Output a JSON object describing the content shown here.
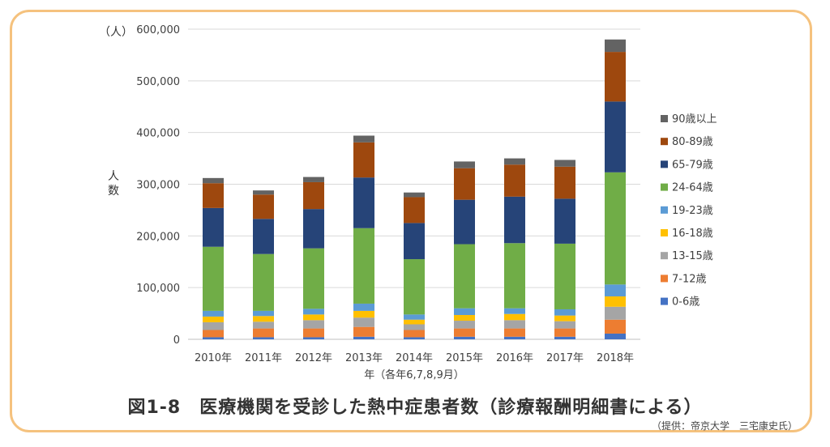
{
  "chart_data": {
    "type": "bar",
    "stacked": true,
    "ylabel_unit": "（人）",
    "ylabel": "人数",
    "xlabel": "年（各年6,7,8,9月）",
    "ylim": [
      0,
      600000
    ],
    "yticks": [
      "0",
      "100,000",
      "200,000",
      "300,000",
      "400,000",
      "500,000",
      "600,000"
    ],
    "categories": [
      "2010年",
      "2011年",
      "2012年",
      "2013年",
      "2014年",
      "2015年",
      "2016年",
      "2017年",
      "2018年"
    ],
    "series": [
      {
        "name": "0-6歳",
        "color": "#4472c4",
        "values": [
          4000,
          4000,
          4000,
          5000,
          4000,
          5000,
          5000,
          5000,
          11000
        ]
      },
      {
        "name": "7-12歳",
        "color": "#ed7d31",
        "values": [
          14000,
          17000,
          17000,
          19000,
          14000,
          16000,
          16000,
          16000,
          27000
        ]
      },
      {
        "name": "13-15歳",
        "color": "#a5a5a5",
        "values": [
          15000,
          13000,
          16000,
          18000,
          11000,
          15000,
          16000,
          14000,
          25000
        ]
      },
      {
        "name": "16-18歳",
        "color": "#ffc000",
        "values": [
          11000,
          11000,
          11000,
          13000,
          9000,
          11000,
          12000,
          11000,
          20000
        ]
      },
      {
        "name": "19-23歳",
        "color": "#5b9bd5",
        "values": [
          11000,
          10000,
          11000,
          14000,
          10000,
          13000,
          11000,
          12000,
          23000
        ]
      },
      {
        "name": "24-64歳",
        "color": "#70ad47",
        "values": [
          124000,
          110000,
          117000,
          146000,
          107000,
          124000,
          126000,
          127000,
          217000
        ]
      },
      {
        "name": "65-79歳",
        "color": "#264478",
        "values": [
          75000,
          68000,
          76000,
          98000,
          70000,
          86000,
          90000,
          87000,
          137000
        ]
      },
      {
        "name": "80-89歳",
        "color": "#9e480e",
        "values": [
          48000,
          47000,
          52000,
          68000,
          50000,
          61000,
          62000,
          62000,
          96000
        ]
      },
      {
        "name": "90歳以上",
        "color": "#636363",
        "values": [
          10000,
          8000,
          10000,
          13000,
          9000,
          13000,
          12000,
          13000,
          24000
        ]
      }
    ]
  },
  "caption": {
    "title": "図1-8　医療機関を受診した熱中症患者数（診療報酬明細書による）",
    "credit": "（提供：帝京大学　三宅康史氏）"
  }
}
